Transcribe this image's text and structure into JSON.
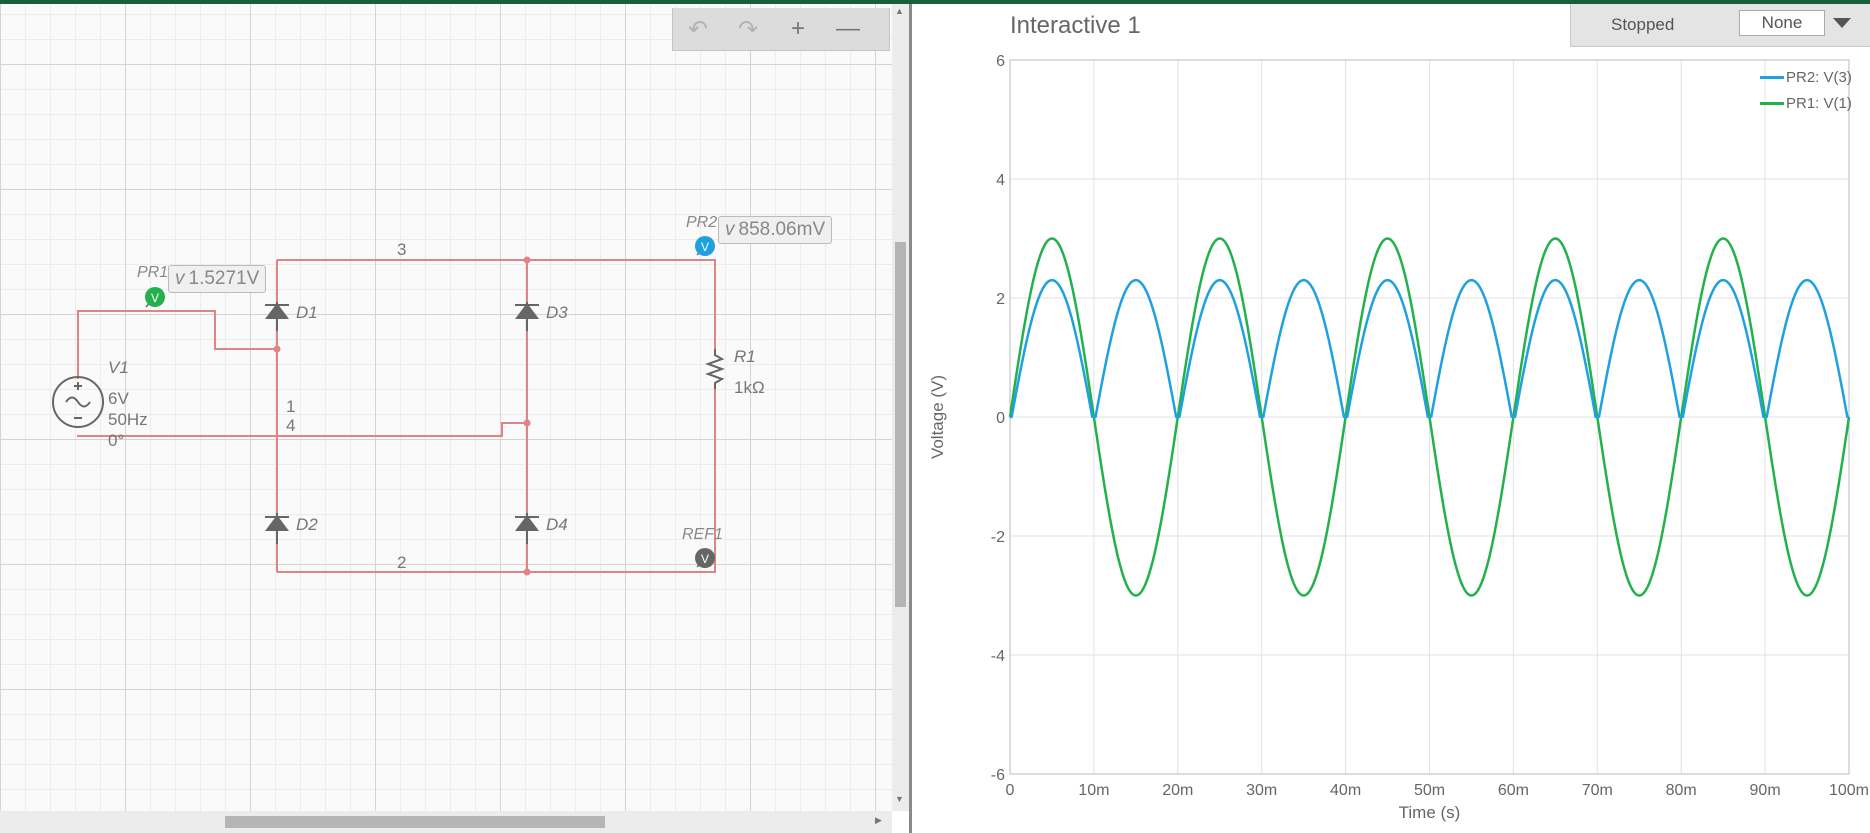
{
  "schematic": {
    "toolbar": {
      "undo": "↶",
      "redo": "↷",
      "zoom_in": "+",
      "zoom_out": "—"
    },
    "probes": {
      "pr1": {
        "name": "PR1",
        "value_prefix": "v",
        "value": "1.5271V",
        "color": "#22b14c"
      },
      "pr2": {
        "name": "PR2",
        "value_prefix": "v",
        "value": "858.06mV",
        "color": "#1fa0e0"
      },
      "ref1": {
        "name": "REF1",
        "color": "#666666"
      }
    },
    "source": {
      "name": "V1",
      "amplitude": "6V",
      "frequency": "50Hz",
      "phase": "0°"
    },
    "resistor": {
      "name": "R1",
      "value": "1kΩ"
    },
    "diodes": [
      "D1",
      "D2",
      "D3",
      "D4"
    ],
    "nets": {
      "n1": "1",
      "n2": "2",
      "n3": "3",
      "n4": "4"
    },
    "probe_icon_letter": "V",
    "wire_color": "#e08585"
  },
  "graph": {
    "title": "Interactive 1",
    "status": "Stopped",
    "select_value": "None",
    "chart_data": {
      "type": "line",
      "xlabel": "Time (s)",
      "ylabel": "Voltage (V)",
      "xlim": [
        0,
        100
      ],
      "ylim": [
        -6,
        6
      ],
      "x_ticks": [
        "0",
        "10m",
        "20m",
        "30m",
        "40m",
        "50m",
        "60m",
        "70m",
        "80m",
        "90m",
        "100m"
      ],
      "y_ticks": [
        "6",
        "4",
        "2",
        "0",
        "-2",
        "-4",
        "-6"
      ],
      "grid": true,
      "legend": "top-right",
      "series": [
        {
          "name": "PR2: V(3)",
          "color": "#1fa0e0",
          "shape": "full-wave rectified sine",
          "peak": 2.3,
          "period_ms": 10
        },
        {
          "name": "PR1: V(1)",
          "color": "#22b14c",
          "shape": "sine",
          "amplitude": 3.0,
          "frequency_hz": 50
        }
      ]
    }
  }
}
